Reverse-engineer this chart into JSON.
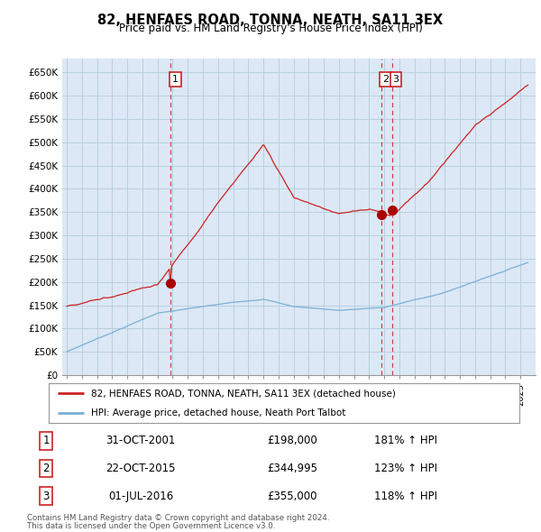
{
  "title": "82, HENFAES ROAD, TONNA, NEATH, SA11 3EX",
  "subtitle": "Price paid vs. HM Land Registry's House Price Index (HPI)",
  "ylim": [
    0,
    680000
  ],
  "yticks": [
    0,
    50000,
    100000,
    150000,
    200000,
    250000,
    300000,
    350000,
    400000,
    450000,
    500000,
    550000,
    600000,
    650000
  ],
  "ytick_labels": [
    "£0",
    "£50K",
    "£100K",
    "£150K",
    "£200K",
    "£250K",
    "£300K",
    "£350K",
    "£400K",
    "£450K",
    "£500K",
    "£550K",
    "£600K",
    "£650K"
  ],
  "price_paid_color": "#cc2222",
  "hpi_color": "#7ab0d4",
  "marker_color": "#aa0000",
  "vline_color": "#cc2222",
  "background_color": "#ffffff",
  "chart_bg_color": "#dce8f5",
  "grid_color": "#b8cfe0",
  "sale1_date": 2001.83,
  "sale1_price": 198000,
  "sale1_label": "1",
  "sale2_date": 2015.81,
  "sale2_price": 344995,
  "sale2_label": "2",
  "sale3_date": 2016.5,
  "sale3_price": 355000,
  "sale3_label": "3",
  "legend_label_red": "82, HENFAES ROAD, TONNA, NEATH, SA11 3EX (detached house)",
  "legend_label_blue": "HPI: Average price, detached house, Neath Port Talbot",
  "footer1": "Contains HM Land Registry data © Crown copyright and database right 2024.",
  "footer2": "This data is licensed under the Open Government Licence v3.0.",
  "table_rows": [
    {
      "num": "1",
      "date": "31-OCT-2001",
      "price": "£198,000",
      "hpi": "181% ↑ HPI"
    },
    {
      "num": "2",
      "date": "22-OCT-2015",
      "price": "£344,995",
      "hpi": "123% ↑ HPI"
    },
    {
      "num": "3",
      "date": "01-JUL-2016",
      "price": "£355,000",
      "hpi": "118% ↑ HPI"
    }
  ]
}
